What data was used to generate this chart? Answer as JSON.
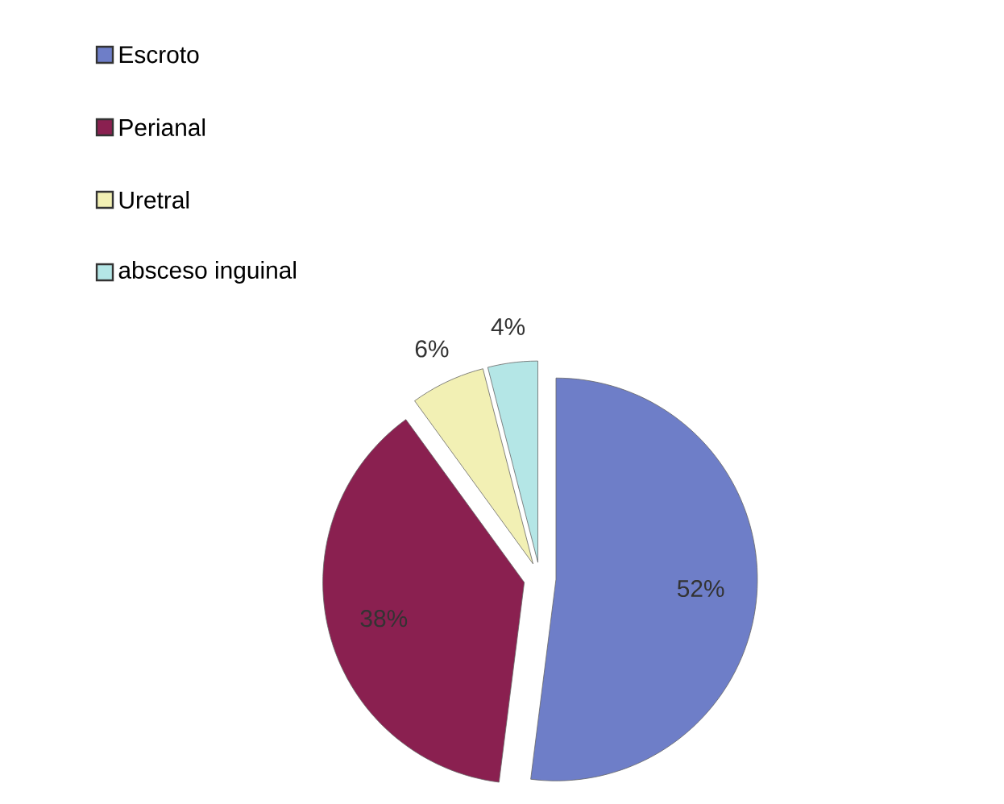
{
  "chart_data": {
    "type": "pie",
    "categories": [
      "Escroto",
      "Perianal",
      "Uretral",
      "absceso inguinal"
    ],
    "values": [
      52,
      38,
      6,
      4
    ],
    "colors": [
      "#6e7ec8",
      "#8a2050",
      "#f2f0b4",
      "#b4e6e6"
    ],
    "value_labels": [
      "52%",
      "38%",
      "6%",
      "4%"
    ],
    "legend": "top left"
  }
}
